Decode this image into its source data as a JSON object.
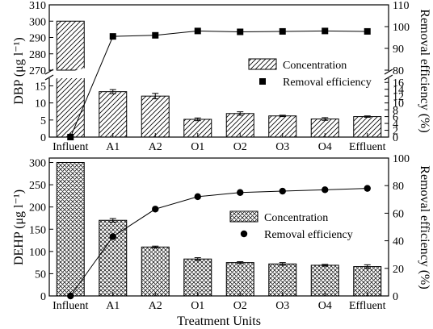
{
  "chart_data": [
    {
      "type": "bar",
      "panel": "top",
      "categories": [
        "Influent",
        "A1",
        "A2",
        "O1",
        "O2",
        "O3",
        "O4",
        "Effluent"
      ],
      "ylabel": "DBP (μg l⁻¹)",
      "y2label": "Removal efficiency (%)",
      "y_axis_break": {
        "lower_range": [
          0,
          17
        ],
        "upper_range": [
          270,
          310
        ]
      },
      "lower_yticks": [
        "0",
        "5",
        "10",
        "15"
      ],
      "upper_yticks": [
        "270",
        "280",
        "290",
        "300",
        "310"
      ],
      "y2lim": [
        0,
        110
      ],
      "y2ticks": [
        "0",
        "2",
        "4",
        "6",
        "8",
        "10",
        "12",
        "14",
        "16",
        "80",
        "90",
        "100",
        "110"
      ],
      "legend_position": "right-center",
      "series": [
        {
          "name": "Concentration",
          "kind": "bar",
          "pattern": "diagonal-hatch",
          "values": [
            300.0,
            13.3,
            12.0,
            5.2,
            6.9,
            6.2,
            5.3,
            6.0
          ],
          "errors": [
            0.0,
            0.6,
            0.8,
            0.4,
            0.5,
            0.2,
            0.4,
            0.2
          ]
        },
        {
          "name": "Removal efficiency",
          "kind": "line",
          "marker": "square",
          "axis": "right",
          "values": [
            0.0,
            95.5,
            96.0,
            98.0,
            97.6,
            97.8,
            98.0,
            97.8
          ]
        }
      ]
    },
    {
      "type": "bar",
      "panel": "bottom",
      "categories": [
        "Influent",
        "A1",
        "A2",
        "O1",
        "O2",
        "O3",
        "O4",
        "Effluent"
      ],
      "xlabel": "Treatment Units",
      "ylabel": "DEHP (μg l⁻¹)",
      "y2label": "Removal efficiency (%)",
      "ylim": [
        0,
        310
      ],
      "yticks": [
        "0",
        "50",
        "100",
        "150",
        "200",
        "250",
        "300"
      ],
      "y2lim": [
        0,
        100
      ],
      "y2ticks": [
        "0",
        "20",
        "40",
        "60",
        "80",
        "100"
      ],
      "legend_position": "right-center",
      "series": [
        {
          "name": "Concentration",
          "kind": "bar",
          "pattern": "crosshatch",
          "values": [
            300.0,
            170.0,
            110.0,
            83.0,
            75.0,
            72.0,
            69.0,
            66.0
          ],
          "errors": [
            0.0,
            4.0,
            2.0,
            3.0,
            2.0,
            3.0,
            2.0,
            4.0
          ]
        },
        {
          "name": "Removal efficiency",
          "kind": "line",
          "marker": "circle",
          "axis": "right",
          "values": [
            0.0,
            43.0,
            63.0,
            72.0,
            75.0,
            76.0,
            77.0,
            78.0
          ]
        }
      ]
    }
  ]
}
